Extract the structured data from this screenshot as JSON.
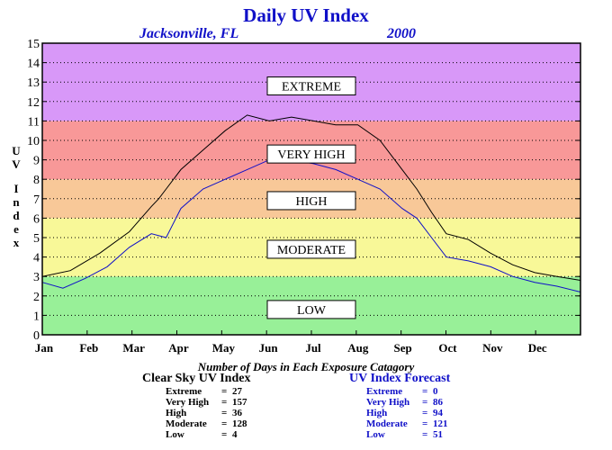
{
  "chart_data": {
    "type": "line",
    "title": "Daily UV Index",
    "subtitle_location": "Jacksonville, FL",
    "subtitle_year": "2000",
    "ylabel": "UV Index",
    "ylim": [
      0,
      15
    ],
    "yticks": [
      0,
      1,
      2,
      3,
      4,
      5,
      6,
      7,
      8,
      9,
      10,
      11,
      12,
      13,
      14,
      15
    ],
    "xticks": [
      "Jan",
      "Feb",
      "Mar",
      "Apr",
      "May",
      "Jun",
      "Jul",
      "Aug",
      "Sep",
      "Oct",
      "Nov",
      "Dec"
    ],
    "grid": true,
    "bands": [
      {
        "label": "LOW",
        "from": 0,
        "to": 3,
        "color": "#98f098",
        "label_value": 1.3
      },
      {
        "label": "MODERATE",
        "from": 3,
        "to": 6,
        "color": "#f8f898",
        "label_value": 4.4
      },
      {
        "label": "HIGH",
        "from": 6,
        "to": 8,
        "color": "#f8c898",
        "label_value": 6.9
      },
      {
        "label": "VERY HIGH",
        "from": 8,
        "to": 11,
        "color": "#f89898",
        "label_value": 9.3
      },
      {
        "label": "EXTREME",
        "from": 11,
        "to": 15,
        "color": "#d898f8",
        "label_value": 12.8
      }
    ],
    "series": [
      {
        "color": "#000000",
        "points": [
          [
            1,
            3.0
          ],
          [
            20,
            3.3
          ],
          [
            40,
            4.2
          ],
          [
            60,
            5.3
          ],
          [
            75,
            6.6
          ],
          [
            80,
            7.0
          ],
          [
            85,
            7.5
          ],
          [
            95,
            8.5
          ],
          [
            110,
            9.5
          ],
          [
            125,
            10.5
          ],
          [
            140,
            11.3
          ],
          [
            155,
            11.0
          ],
          [
            170,
            11.2
          ],
          [
            185,
            11.0
          ],
          [
            200,
            10.8
          ],
          [
            215,
            10.8
          ],
          [
            230,
            10.0
          ],
          [
            245,
            8.5
          ],
          [
            255,
            7.5
          ],
          [
            265,
            6.3
          ],
          [
            275,
            5.2
          ],
          [
            290,
            4.9
          ],
          [
            305,
            4.2
          ],
          [
            320,
            3.6
          ],
          [
            335,
            3.2
          ],
          [
            350,
            3.0
          ],
          [
            366,
            2.8
          ]
        ]
      },
      {
        "color": "#1010c8",
        "points": [
          [
            1,
            2.7
          ],
          [
            15,
            2.4
          ],
          [
            30,
            2.9
          ],
          [
            45,
            3.5
          ],
          [
            60,
            4.5
          ],
          [
            75,
            5.2
          ],
          [
            85,
            5.0
          ],
          [
            95,
            6.5
          ],
          [
            110,
            7.5
          ],
          [
            125,
            8.0
          ],
          [
            140,
            8.5
          ],
          [
            155,
            9.0
          ],
          [
            170,
            9.0
          ],
          [
            185,
            8.8
          ],
          [
            200,
            8.5
          ],
          [
            215,
            8.0
          ],
          [
            230,
            7.5
          ],
          [
            245,
            6.5
          ],
          [
            255,
            6.0
          ],
          [
            265,
            5.0
          ],
          [
            275,
            4.0
          ],
          [
            290,
            3.8
          ],
          [
            305,
            3.5
          ],
          [
            320,
            3.0
          ],
          [
            335,
            2.7
          ],
          [
            350,
            2.5
          ],
          [
            366,
            2.2
          ]
        ]
      }
    ]
  },
  "summary_label": "Number of Days in Each Exposure Catagory",
  "clear_sky": {
    "title": "Clear Sky UV Index",
    "rows": [
      {
        "label": "Extreme",
        "value": "27"
      },
      {
        "label": "Very High",
        "value": "157"
      },
      {
        "label": "High",
        "value": "36"
      },
      {
        "label": "Moderate",
        "value": "128"
      },
      {
        "label": "Low",
        "value": "4"
      }
    ]
  },
  "forecast": {
    "title": "UV Index Forecast",
    "rows": [
      {
        "label": "Extreme",
        "value": "0"
      },
      {
        "label": "Very High",
        "value": "86"
      },
      {
        "label": "High",
        "value": "94"
      },
      {
        "label": "Moderate",
        "value": "121"
      },
      {
        "label": "Low",
        "value": "51"
      }
    ]
  }
}
